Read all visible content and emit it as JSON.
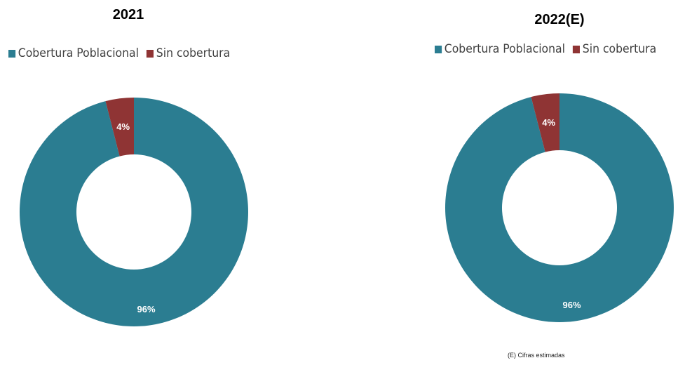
{
  "charts": [
    {
      "title": "2021"
    },
    {
      "title": "2022(E)"
    }
  ],
  "legend": [
    {
      "label": "Cobertura Poblacional",
      "color": "#2b7d91"
    },
    {
      "label": "Sin cobertura",
      "color": "#8f3434"
    }
  ],
  "footnote": "(E) Cifras estimadas",
  "chart_data": [
    {
      "type": "pie",
      "title": "2021",
      "categories": [
        "Cobertura Poblacional",
        "Sin cobertura"
      ],
      "values": [
        96,
        4
      ],
      "data_labels": [
        "96%",
        "4%"
      ],
      "colors": [
        "#2b7d91",
        "#8f3434"
      ],
      "donut": true,
      "legend_position": "top"
    },
    {
      "type": "pie",
      "title": "2022(E)",
      "categories": [
        "Cobertura Poblacional",
        "Sin cobertura"
      ],
      "values": [
        96,
        4
      ],
      "data_labels": [
        "96%",
        "4%"
      ],
      "colors": [
        "#2b7d91",
        "#8f3434"
      ],
      "donut": true,
      "legend_position": "top"
    }
  ]
}
